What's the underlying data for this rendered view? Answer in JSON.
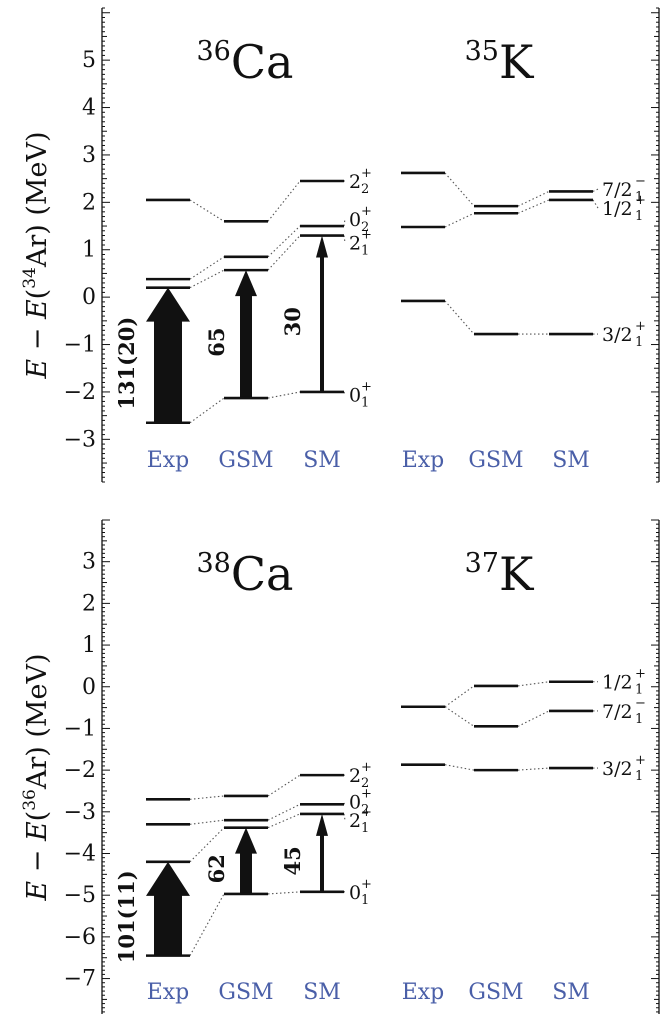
{
  "panels": [
    {
      "y_range": [
        -3.9,
        6.1
      ],
      "y_ticks": [
        -3,
        -2,
        -1,
        0,
        1,
        2,
        3,
        4,
        5
      ],
      "y_tick_labels": [
        "−3",
        "−2",
        "−1",
        "0",
        "1",
        "2",
        "3",
        "4",
        "5"
      ],
      "y_axis_label": {
        "prefix_italic": "E",
        "dash": " − ",
        "func_italic": "E",
        "open": "(",
        "mass": "34",
        "elem": "Ar",
        "close": ")",
        "unit": " (MeV)"
      },
      "groups": [
        {
          "nucleus": {
            "mass": "36",
            "symbol": "Ca"
          },
          "columns": [
            "Exp",
            "GSM",
            "SM"
          ],
          "levels": [
            [
              -2.65,
              0.2,
              0.38,
              2.05
            ],
            [
              -2.13,
              0.57,
              0.85,
              1.6
            ],
            [
              -2.0,
              1.3,
              1.5,
              2.45
            ]
          ],
          "labels": [
            {
              "j": "0",
              "sub": "1",
              "sup": "+",
              "row": 0
            },
            {
              "j": "2",
              "sub": "1",
              "sup": "+",
              "row": 1
            },
            {
              "j": "0",
              "sub": "2",
              "sup": "+",
              "row": 2
            },
            {
              "j": "2",
              "sub": "2",
              "sup": "+",
              "row": 3
            }
          ],
          "label_y": [
            -2.05,
            1.15,
            1.65,
            2.45
          ],
          "transitions": [
            {
              "label": "131(20)",
              "from": -2.65,
              "to": 0.2
            },
            {
              "label": "65",
              "from": -2.13,
              "to": 0.57
            },
            {
              "label": "30",
              "from": -2.0,
              "to": 1.3
            }
          ]
        },
        {
          "nucleus": {
            "mass": "35",
            "symbol": "K"
          },
          "columns": [
            "Exp",
            "GSM",
            "SM"
          ],
          "levels": [
            [
              -0.08,
              1.48,
              2.62
            ],
            [
              -0.78,
              1.77,
              1.92
            ],
            [
              -0.78,
              2.05,
              2.23
            ]
          ],
          "labels": [
            {
              "j": "3/2",
              "sub": "1",
              "sup": "+",
              "row": 0
            },
            {
              "j": "1/2",
              "sub": "1",
              "sup": "+",
              "row": 1
            },
            {
              "j": "7/2",
              "sub": "1",
              "sup": "−",
              "row": 2
            }
          ],
          "label_y": [
            -0.78,
            1.88,
            2.28
          ],
          "transitions": []
        }
      ]
    },
    {
      "y_range": [
        -7.85,
        4.0
      ],
      "y_ticks": [
        -7,
        -6,
        -5,
        -4,
        -3,
        -2,
        -1,
        0,
        1,
        2,
        3
      ],
      "y_tick_labels": [
        "−7",
        "−6",
        "−5",
        "−4",
        "−3",
        "−2",
        "−1",
        "0",
        "1",
        "2",
        "3"
      ],
      "y_axis_label": {
        "prefix_italic": "E",
        "dash": " − ",
        "func_italic": "E",
        "open": "(",
        "mass": "36",
        "elem": "Ar",
        "close": ")",
        "unit": " (MeV)"
      },
      "groups": [
        {
          "nucleus": {
            "mass": "38",
            "symbol": "Ca"
          },
          "columns": [
            "Exp",
            "GSM",
            "SM"
          ],
          "levels": [
            [
              -6.45,
              -4.2,
              -3.3,
              -2.7
            ],
            [
              -4.97,
              -3.38,
              -3.2,
              -2.62
            ],
            [
              -4.92,
              -3.05,
              -2.82,
              -2.12
            ]
          ],
          "labels": [
            {
              "j": "0",
              "sub": "1",
              "sup": "+",
              "row": 0
            },
            {
              "j": "2",
              "sub": "1",
              "sup": "+",
              "row": 1
            },
            {
              "j": "0",
              "sub": "2",
              "sup": "+",
              "row": 2
            },
            {
              "j": "2",
              "sub": "2",
              "sup": "+",
              "row": 3
            }
          ],
          "label_y": [
            -4.92,
            -3.2,
            -2.75,
            -2.12
          ],
          "transitions": [
            {
              "label": "101(11)",
              "from": -6.45,
              "to": -4.2
            },
            {
              "label": "62",
              "from": -4.97,
              "to": -3.38
            },
            {
              "label": "45",
              "from": -4.92,
              "to": -3.05
            }
          ]
        },
        {
          "nucleus": {
            "mass": "37",
            "symbol": "K"
          },
          "columns": [
            "Exp",
            "GSM",
            "SM"
          ],
          "levels": [
            [
              -1.87,
              -0.48,
              -0.48
            ],
            [
              -2.0,
              -0.95,
              0.02
            ],
            [
              -1.95,
              -0.58,
              0.12
            ]
          ],
          "labels": [
            {
              "j": "3/2",
              "sub": "1",
              "sup": "+",
              "row": 0
            },
            {
              "j": "7/2",
              "sub": "1",
              "sup": "−",
              "row": 1
            },
            {
              "j": "1/2",
              "sub": "1",
              "sup": "+",
              "row": 2
            }
          ],
          "label_y": [
            -1.95,
            -0.58,
            0.12
          ],
          "transitions": []
        }
      ]
    }
  ],
  "colors": {
    "column_label": "#4a5fa8",
    "line": "#111111",
    "connector": "#555555"
  }
}
